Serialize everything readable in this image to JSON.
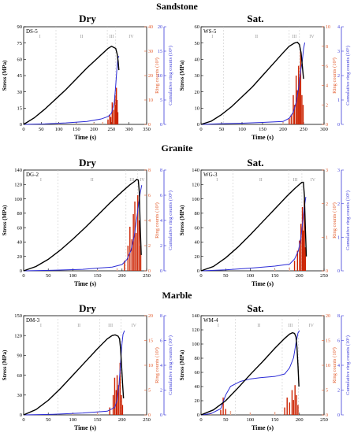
{
  "figure": {
    "rock_labels": [
      "Sandstone",
      "Granite",
      "Marble"
    ],
    "condition_labels": [
      "Dry",
      "Sat."
    ],
    "colors": {
      "stress": "#000000",
      "ring": "#cc2200",
      "ring_faint": "#e7a58c",
      "cumulative": "#2b2bd6",
      "axis_left": "#000000",
      "axis_right1": "#e25a2a",
      "axis_right2": "#3a3ad8",
      "phase_line": "#cccccc",
      "phase_text": "#999999"
    }
  },
  "chart_data": [
    {
      "type": "line",
      "id": "DS-5",
      "rock": "Sandstone",
      "condition": "Dry",
      "sample_label": "DS-5",
      "xlabel": "Time (s)",
      "ylabel": "Stress (MPa)",
      "y2label": "Ring counts (10³)",
      "y3label": "Cumulative ring counts (10⁵)",
      "xlim": [
        0,
        350
      ],
      "xticks": [
        0,
        50,
        100,
        150,
        200,
        250,
        300,
        350
      ],
      "ylim": [
        0,
        90
      ],
      "yticks": [
        0,
        15,
        30,
        45,
        60,
        75,
        90
      ],
      "y2lim": [
        0,
        40
      ],
      "y2ticks": [
        0,
        10,
        20,
        30,
        40
      ],
      "y3lim": [
        0,
        20
      ],
      "y3ticks": [
        0,
        5,
        10,
        15,
        20
      ],
      "phase_labels": [
        "I",
        "II",
        "III",
        "IV"
      ],
      "phase_bounds": [
        92,
        238,
        262
      ],
      "series": [
        {
          "name": "Stress",
          "axis": "left",
          "x": [
            0,
            30,
            60,
            90,
            120,
            150,
            180,
            210,
            240,
            250,
            256,
            262,
            266,
            269,
            271
          ],
          "y": [
            0,
            6,
            14,
            23,
            32,
            42,
            52,
            61,
            70,
            72,
            71,
            70,
            65,
            58,
            50
          ]
        },
        {
          "name": "Ring counts",
          "axis": "right1",
          "x": [
            100,
            150,
            200,
            225,
            240,
            245,
            248,
            252,
            256,
            260,
            262,
            264,
            266,
            268
          ],
          "y": [
            0.3,
            0.4,
            0.6,
            1,
            2,
            4,
            3,
            9,
            6,
            12,
            8,
            15,
            10,
            5
          ]
        },
        {
          "name": "Cumulative ring counts",
          "axis": "right2",
          "x": [
            0,
            60,
            120,
            180,
            220,
            240,
            250,
            258,
            262,
            265,
            268,
            271
          ],
          "y": [
            0,
            0.1,
            0.3,
            0.6,
            1.1,
            1.6,
            2.3,
            4.5,
            8,
            11,
            13.5,
            14
          ]
        }
      ]
    },
    {
      "type": "line",
      "id": "WS-5",
      "rock": "Sandstone",
      "condition": "Sat.",
      "sample_label": "WS-5",
      "xlabel": "Time (s)",
      "ylabel": "Stress (MPa)",
      "y2label": "Ring counts (10³)",
      "y3label": "Cumulative ring counts (10⁵)",
      "xlim": [
        0,
        300
      ],
      "xticks": [
        0,
        50,
        100,
        150,
        200,
        250,
        300
      ],
      "ylim": [
        0,
        60
      ],
      "yticks": [
        0,
        10,
        20,
        30,
        40,
        50,
        60
      ],
      "y2lim": [
        0,
        10
      ],
      "y2ticks": [
        0,
        2,
        4,
        6,
        8,
        10
      ],
      "y3lim": [
        0,
        4
      ],
      "y3ticks": [
        0,
        1,
        2,
        3,
        4
      ],
      "phase_labels": [
        "I",
        "II",
        "III",
        "IV"
      ],
      "phase_bounds": [
        55,
        215,
        240
      ],
      "series": [
        {
          "name": "Stress",
          "axis": "left",
          "x": [
            0,
            25,
            50,
            75,
            100,
            125,
            150,
            175,
            200,
            215,
            228,
            235,
            240,
            244,
            247,
            250
          ],
          "y": [
            0,
            2,
            6,
            11,
            17,
            23,
            30,
            37,
            44,
            48,
            50,
            50.5,
            49,
            44,
            36,
            28
          ]
        },
        {
          "name": "Ring counts",
          "axis": "right1",
          "x": [
            200,
            215,
            220,
            225,
            228,
            232,
            235,
            238,
            240,
            243,
            246,
            249
          ],
          "y": [
            0.2,
            0.6,
            1,
            3,
            2,
            5,
            3.5,
            6,
            4.5,
            7.5,
            3,
            2
          ]
        },
        {
          "name": "Cumulative ring counts",
          "axis": "right2",
          "x": [
            0,
            50,
            100,
            150,
            200,
            215,
            225,
            232,
            238,
            243,
            247,
            250,
            253
          ],
          "y": [
            0,
            0.03,
            0.05,
            0.08,
            0.12,
            0.25,
            0.5,
            0.9,
            1.5,
            2.2,
            2.6,
            3.1,
            3.35
          ]
        }
      ]
    },
    {
      "type": "line",
      "id": "DG-2",
      "rock": "Granite",
      "condition": "Dry",
      "sample_label": "DG-2",
      "xlabel": "Time (s)",
      "ylabel": "Stress (MPa)",
      "y2label": "Ring counts (10³)",
      "y3label": "Cumulative ring counts (10⁵)",
      "xlim": [
        0,
        250
      ],
      "xticks": [
        0,
        50,
        100,
        150,
        200,
        250
      ],
      "ylim": [
        0,
        140
      ],
      "yticks": [
        0,
        20,
        40,
        60,
        80,
        100,
        120,
        140
      ],
      "y2lim": [
        0,
        8
      ],
      "y2ticks": [
        0,
        2,
        4,
        6,
        8
      ],
      "y3lim": [
        0,
        8
      ],
      "y3ticks": [
        0,
        2,
        4,
        6,
        8
      ],
      "phase_labels": [
        "I",
        "II",
        "III",
        "IV"
      ],
      "phase_bounds": [
        70,
        208,
        232
      ],
      "series": [
        {
          "name": "Stress",
          "axis": "left",
          "x": [
            0,
            25,
            50,
            75,
            100,
            125,
            150,
            175,
            200,
            215,
            225,
            230,
            233,
            235,
            237,
            239
          ],
          "y": [
            0,
            6,
            16,
            29,
            44,
            60,
            77,
            94,
            110,
            119,
            124,
            127,
            126,
            110,
            60,
            22
          ]
        },
        {
          "name": "Ring counts",
          "axis": "right1",
          "x": [
            150,
            190,
            205,
            212,
            216,
            220,
            223,
            226,
            229,
            232,
            235,
            238
          ],
          "y": [
            0.1,
            0.2,
            0.8,
            2,
            3.5,
            2.5,
            4.5,
            5.5,
            3,
            6,
            4,
            2
          ]
        },
        {
          "name": "Cumulative ring counts",
          "axis": "right2",
          "x": [
            0,
            60,
            120,
            180,
            200,
            210,
            218,
            225,
            230,
            234,
            237,
            240
          ],
          "y": [
            0,
            0.05,
            0.12,
            0.3,
            0.5,
            0.9,
            1.6,
            2.8,
            4.2,
            5.4,
            6.2,
            6.8
          ]
        }
      ]
    },
    {
      "type": "line",
      "id": "WG-3",
      "rock": "Granite",
      "condition": "Sat.",
      "sample_label": "WG-3",
      "xlabel": "Time (s)",
      "ylabel": "Stress (MPa)",
      "y2label": "Ring counts (10³)",
      "y3label": "Cumulative ring counts (10⁵)",
      "xlim": [
        0,
        250
      ],
      "xticks": [
        0,
        50,
        100,
        150,
        200,
        250
      ],
      "ylim": [
        0,
        140
      ],
      "yticks": [
        0,
        20,
        40,
        60,
        80,
        100,
        120,
        140
      ],
      "y2lim": [
        0,
        3
      ],
      "y2ticks": [
        0,
        1,
        2,
        3
      ],
      "y3lim": [
        0,
        3
      ],
      "y3ticks": [
        0,
        1,
        2,
        3
      ],
      "phase_labels": [
        "I",
        "II",
        "III",
        "IV"
      ],
      "phase_bounds": [
        65,
        178,
        205
      ],
      "series": [
        {
          "name": "Stress",
          "axis": "left",
          "x": [
            0,
            25,
            50,
            75,
            100,
            125,
            150,
            175,
            190,
            200,
            205,
            208,
            210,
            212,
            214
          ],
          "y": [
            0,
            6,
            18,
            33,
            50,
            68,
            86,
            104,
            114,
            120,
            123,
            123,
            105,
            60,
            20
          ]
        },
        {
          "name": "Ring counts",
          "axis": "right1",
          "x": [
            150,
            180,
            190,
            196,
            200,
            203,
            206,
            208,
            210,
            212
          ],
          "y": [
            0.05,
            0.1,
            0.3,
            0.6,
            0.9,
            1.4,
            1.9,
            1.2,
            2.1,
            0.7
          ]
        },
        {
          "name": "Cumulative ring counts",
          "axis": "right2",
          "x": [
            0,
            50,
            100,
            150,
            180,
            190,
            198,
            203,
            207,
            210,
            213
          ],
          "y": [
            0,
            0.03,
            0.08,
            0.14,
            0.2,
            0.35,
            0.6,
            1.0,
            1.5,
            1.9,
            2.2
          ]
        }
      ]
    },
    {
      "type": "line",
      "id": "DM-3",
      "rock": "Marble",
      "condition": "Dry",
      "sample_label": "DM-3",
      "xlabel": "Time (s)",
      "ylabel": "Stress (MPa)",
      "y2label": "Ring counts (10³)",
      "y3label": "Cumulative ring counts (10⁵)",
      "xlim": [
        0,
        250
      ],
      "xticks": [
        0,
        50,
        100,
        150,
        200,
        250
      ],
      "ylim": [
        0,
        150
      ],
      "yticks": [
        0,
        30,
        60,
        90,
        120,
        150
      ],
      "y2lim": [
        0,
        20
      ],
      "y2ticks": [
        0,
        5,
        10,
        15,
        20
      ],
      "y3lim": [
        0,
        8
      ],
      "y3ticks": [
        0,
        2,
        4,
        6,
        8
      ],
      "phase_labels": [
        "I",
        "II",
        "III",
        "IV"
      ],
      "phase_bounds": [
        70,
        155,
        198
      ],
      "series": [
        {
          "name": "Stress",
          "axis": "left",
          "x": [
            0,
            25,
            50,
            75,
            100,
            125,
            150,
            170,
            180,
            186,
            192,
            195,
            197,
            199,
            201,
            203
          ],
          "y": [
            0,
            8,
            22,
            40,
            60,
            80,
            100,
            115,
            120,
            121,
            119,
            115,
            100,
            75,
            48,
            25
          ]
        },
        {
          "name": "Ring counts",
          "axis": "right1",
          "x": [
            100,
            150,
            175,
            182,
            185,
            188,
            190,
            193,
            196,
            199,
            201
          ],
          "y": [
            0.3,
            0.6,
            1.5,
            4,
            7.5,
            5,
            8,
            6,
            10.5,
            4,
            2
          ]
        },
        {
          "name": "Cumulative ring counts",
          "axis": "right2",
          "x": [
            0,
            60,
            120,
            170,
            185,
            190,
            194,
            197,
            200,
            202,
            205
          ],
          "y": [
            0,
            0.05,
            0.15,
            0.3,
            0.6,
            1.2,
            2.5,
            4.2,
            5.8,
            6.5,
            6.8
          ]
        }
      ]
    },
    {
      "type": "line",
      "id": "WM-4",
      "rock": "Marble",
      "condition": "Sat.",
      "sample_label": "WM-4",
      "xlabel": "Time (s)",
      "ylabel": "Stress (MPa)",
      "y2label": "Ring counts (10³)",
      "y3label": "Cumulative ring counts (10⁵)",
      "xlim": [
        0,
        250
      ],
      "xticks": [
        0,
        50,
        100,
        150,
        200,
        250
      ],
      "ylim": [
        0,
        140
      ],
      "yticks": [
        0,
        20,
        40,
        60,
        80,
        100,
        120,
        140
      ],
      "y2lim": [
        0,
        20
      ],
      "y2ticks": [
        0,
        5,
        10,
        15,
        20
      ],
      "y3lim": [
        0,
        8
      ],
      "y3ticks": [
        0,
        2,
        4,
        6,
        8
      ],
      "phase_labels": [
        "I",
        "II",
        "III",
        "IV"
      ],
      "phase_bounds": [
        70,
        165,
        198
      ],
      "series": [
        {
          "name": "Stress",
          "axis": "left",
          "x": [
            0,
            25,
            50,
            75,
            100,
            125,
            150,
            170,
            180,
            186,
            190,
            193,
            195,
            197,
            199
          ],
          "y": [
            0,
            7,
            20,
            38,
            57,
            75,
            94,
            108,
            114,
            116,
            115,
            110,
            95,
            70,
            40
          ]
        },
        {
          "name": "Ring counts",
          "axis": "right1",
          "x": [
            20,
            40,
            45,
            50,
            60,
            100,
            150,
            170,
            175,
            180,
            185,
            188,
            191,
            194,
            197
          ],
          "y": [
            0.5,
            1,
            3.5,
            1.2,
            0.8,
            0.5,
            0.6,
            1.5,
            3.5,
            2.5,
            5,
            3,
            6,
            4,
            2
          ]
        },
        {
          "name": "Cumulative ring counts",
          "axis": "right2",
          "x": [
            0,
            20,
            40,
            50,
            60,
            80,
            100,
            120,
            150,
            170,
            180,
            188,
            193,
            197,
            200
          ],
          "y": [
            0,
            0.1,
            0.5,
            1.6,
            2.3,
            2.7,
            2.9,
            3.0,
            3.1,
            3.3,
            3.8,
            4.6,
            5.8,
            6.6,
            6.8
          ]
        }
      ]
    }
  ]
}
